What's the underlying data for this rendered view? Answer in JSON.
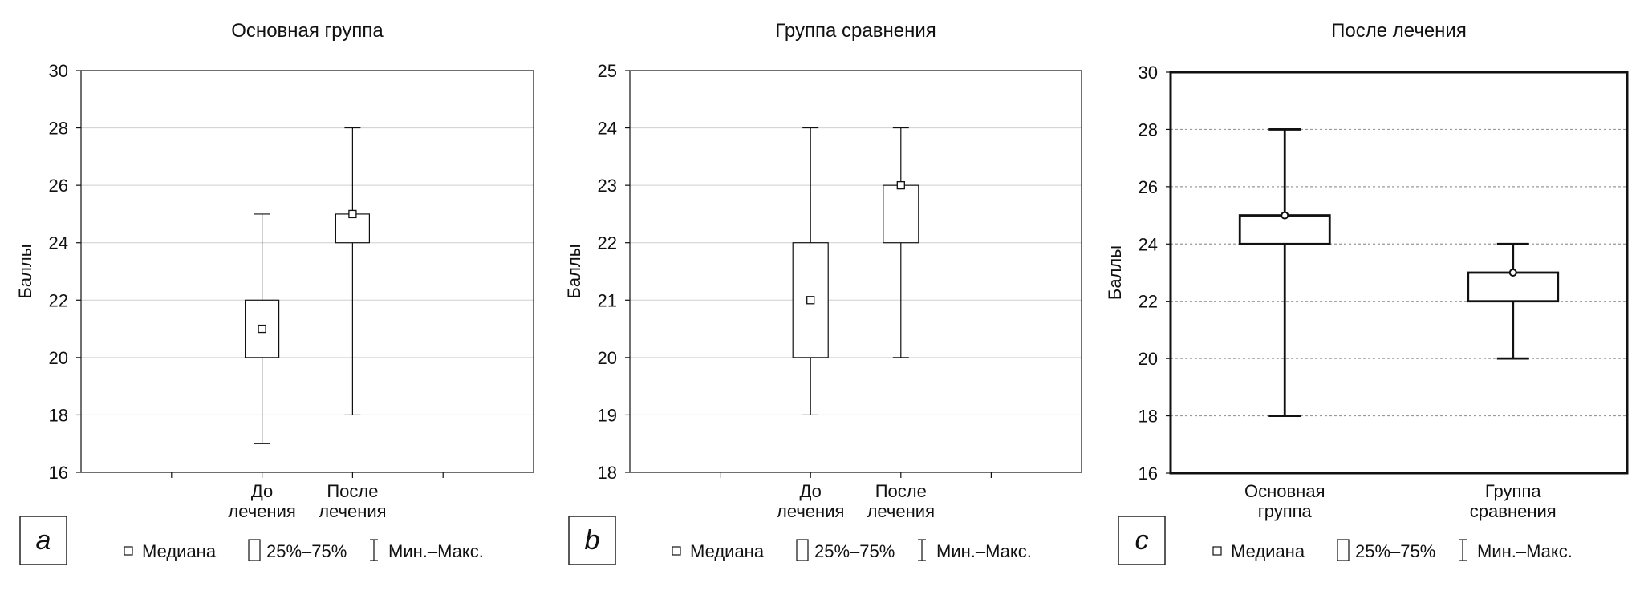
{
  "legend": {
    "median": "Медиана",
    "iqr": "25%–75%",
    "minmax": "Мин.–Макс."
  },
  "chart_data": [
    {
      "type": "boxplot",
      "panel_label": "a",
      "title": "Основная группа",
      "ylabel": "Баллы",
      "ylim": [
        16,
        30
      ],
      "yticks": [
        16,
        18,
        20,
        22,
        24,
        26,
        28,
        30
      ],
      "grid": true,
      "legend_position": "bottom",
      "categories": [
        [
          "До",
          "лечения"
        ],
        [
          "После",
          "лечения"
        ]
      ],
      "series": [
        {
          "min": 17,
          "q1": 20,
          "median": 21,
          "q3": 22,
          "max": 25
        },
        {
          "min": 18,
          "q1": 24,
          "median": 25,
          "q3": 25,
          "max": 28
        }
      ]
    },
    {
      "type": "boxplot",
      "panel_label": "b",
      "title": "Группа сравнения",
      "ylabel": "Баллы",
      "ylim": [
        18,
        25
      ],
      "yticks": [
        18,
        19,
        20,
        21,
        22,
        23,
        24,
        25
      ],
      "grid": true,
      "legend_position": "bottom",
      "categories": [
        [
          "До",
          "лечения"
        ],
        [
          "После",
          "лечения"
        ]
      ],
      "series": [
        {
          "min": 19,
          "q1": 20,
          "median": 21,
          "q3": 22,
          "max": 24
        },
        {
          "min": 20,
          "q1": 22,
          "median": 23,
          "q3": 23,
          "max": 24
        }
      ]
    },
    {
      "type": "boxplot",
      "panel_label": "c",
      "title": "После лечения",
      "ylabel": "Баллы",
      "ylim": [
        16,
        30
      ],
      "yticks": [
        16,
        18,
        20,
        22,
        24,
        26,
        28,
        30
      ],
      "grid": true,
      "legend_position": "bottom",
      "categories": [
        [
          "Основная",
          "группа"
        ],
        [
          "Группа",
          "сравнения"
        ]
      ],
      "series": [
        {
          "min": 18,
          "q1": 24,
          "median": 25,
          "q3": 25,
          "max": 28
        },
        {
          "min": 20,
          "q1": 22,
          "median": 23,
          "q3": 23,
          "max": 24
        }
      ]
    }
  ]
}
